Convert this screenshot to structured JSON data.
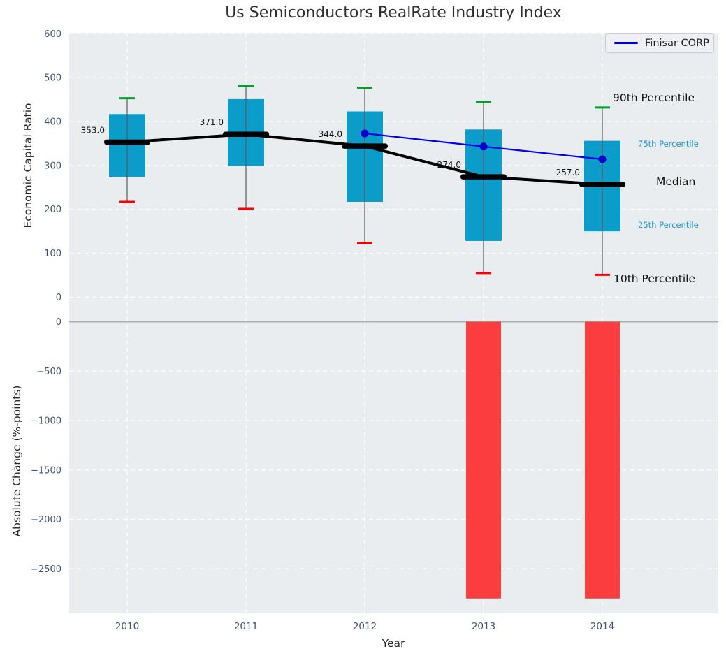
{
  "title": "Us Semiconductors RealRate Industry Index",
  "legend": {
    "label": "Finisar CORP"
  },
  "colors": {
    "box": "#0b9cca",
    "bar": "#fa3d3d",
    "cap_high": "#00a02c",
    "cap_low": "#fa0000",
    "whisker": "#5a5a5a",
    "median": "#000000",
    "finisar_line": "#0000ee",
    "finisar_point": "#0000cc",
    "plot_bg": "#e9edef",
    "grid": "#ffffff",
    "zero_line": "#a8a8a8",
    "tick": "#42536b",
    "annotation": "#111111",
    "percentile_small": "#1b98cb",
    "percentile_big": "#111111"
  },
  "chart_data": {
    "type": "boxplot+bar",
    "categories": [
      "2010",
      "2011",
      "2012",
      "2013",
      "2014"
    ],
    "xlabel": "Year",
    "top_panel": {
      "ylabel": "Economic Capital Ratio",
      "ylim": [
        -28,
        602
      ],
      "yticks": [
        600,
        500,
        400,
        300,
        200,
        100,
        0
      ],
      "grid": true,
      "boxes": [
        {
          "year": "2010",
          "p10": 217,
          "p25": 274,
          "median": 353,
          "p75": 417,
          "p90": 453,
          "median_label": "353.0"
        },
        {
          "year": "2011",
          "p10": 201,
          "p25": 299,
          "median": 371,
          "p75": 451,
          "p90": 481,
          "median_label": "371.0"
        },
        {
          "year": "2012",
          "p10": 123,
          "p25": 217,
          "median": 344,
          "p75": 423,
          "p90": 477,
          "median_label": "344.0"
        },
        {
          "year": "2013",
          "p10": 55,
          "p25": 128,
          "median": 274,
          "p75": 382,
          "p90": 445,
          "median_label": "274.0"
        },
        {
          "year": "2014",
          "p10": 51,
          "p25": 150,
          "median": 257,
          "p75": 356,
          "p90": 432,
          "median_label": "257.0"
        }
      ],
      "series": [
        {
          "name": "Finisar CORP",
          "x": [
            "2012",
            "2013",
            "2014"
          ],
          "values": [
            373,
            343,
            314
          ]
        }
      ],
      "percentile_labels": [
        {
          "id": "p90",
          "text": "90th Percentile",
          "value": 454,
          "style": "big"
        },
        {
          "id": "p75",
          "text": "75th Percentile",
          "value": 349,
          "style": "small"
        },
        {
          "id": "med",
          "text": "Median",
          "value": 263,
          "style": "big"
        },
        {
          "id": "p25",
          "text": "25th Percentile",
          "value": 165,
          "style": "small"
        },
        {
          "id": "p10",
          "text": "10th Percentile",
          "value": 42,
          "style": "big"
        }
      ]
    },
    "bottom_panel": {
      "ylabel": "Absolute Change (%-points)",
      "ylim": [
        -2950,
        125
      ],
      "yticks": [
        0,
        -500,
        -1000,
        -1500,
        -2000,
        -2500
      ],
      "grid": true,
      "bars": {
        "categories": [
          "2010",
          "2011",
          "2012",
          "2013",
          "2014"
        ],
        "values": [
          0,
          0,
          0,
          -2800,
          -2800
        ]
      }
    }
  }
}
